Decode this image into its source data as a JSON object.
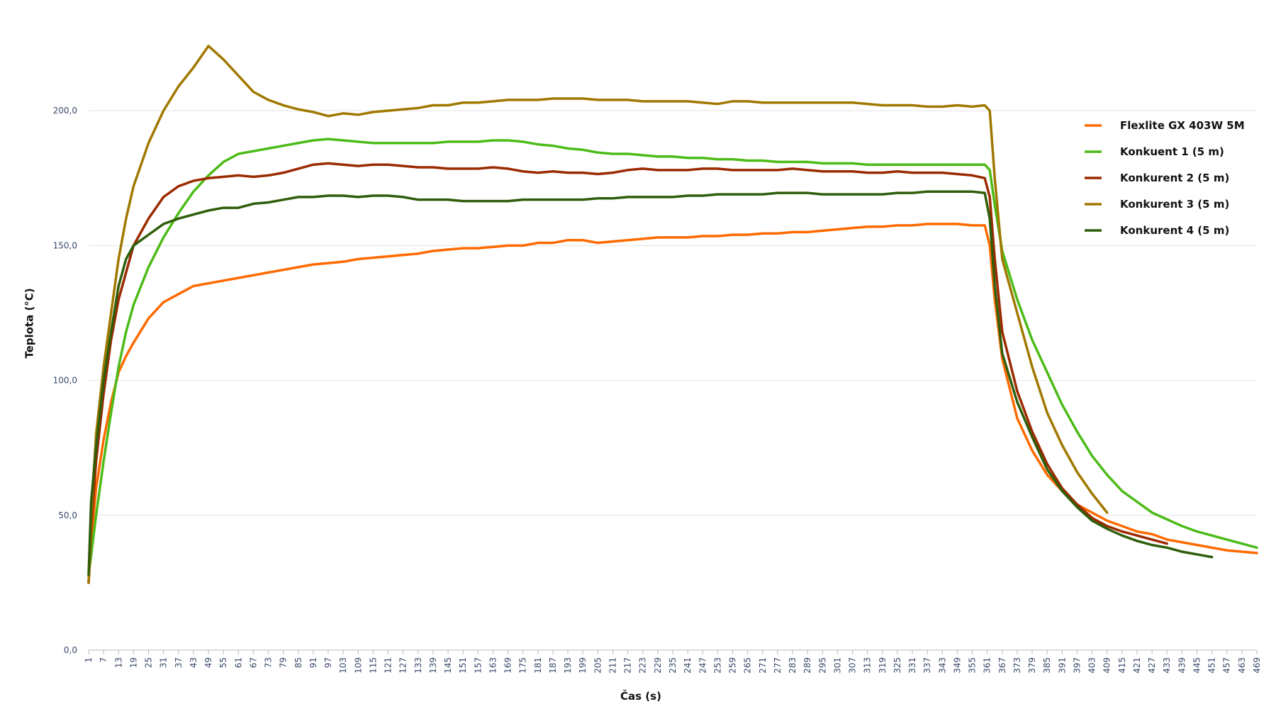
{
  "chart_data": {
    "type": "line",
    "x_label": "Čas (s)",
    "y_label": "Teplota (°C)",
    "x": [
      1,
      2,
      4,
      7,
      10,
      13,
      16,
      19,
      25,
      31,
      37,
      43,
      49,
      55,
      61,
      67,
      73,
      79,
      85,
      91,
      97,
      103,
      109,
      115,
      121,
      127,
      133,
      139,
      145,
      151,
      157,
      163,
      169,
      175,
      181,
      187,
      193,
      199,
      205,
      211,
      217,
      223,
      229,
      235,
      241,
      247,
      253,
      259,
      265,
      271,
      277,
      283,
      289,
      295,
      301,
      307,
      313,
      319,
      325,
      331,
      337,
      343,
      349,
      355,
      360,
      362,
      364,
      367,
      373,
      379,
      385,
      391,
      397,
      403,
      409,
      415,
      421,
      427,
      433,
      439,
      445,
      451,
      457,
      463,
      469
    ],
    "xlim": [
      1,
      469
    ],
    "xticks": [
      1,
      7,
      13,
      19,
      25,
      31,
      37,
      43,
      49,
      55,
      61,
      67,
      73,
      79,
      85,
      91,
      97,
      103,
      109,
      115,
      121,
      127,
      133,
      139,
      145,
      151,
      157,
      163,
      169,
      175,
      181,
      187,
      193,
      199,
      205,
      211,
      217,
      223,
      229,
      235,
      241,
      247,
      253,
      259,
      265,
      271,
      277,
      283,
      289,
      295,
      301,
      307,
      313,
      319,
      325,
      331,
      337,
      343,
      349,
      355,
      361,
      367,
      373,
      379,
      385,
      391,
      397,
      403,
      409,
      415,
      421,
      427,
      433,
      439,
      445,
      451,
      457,
      463,
      469
    ],
    "ylim": [
      0,
      230
    ],
    "yticks": [
      {
        "value": 0,
        "label": "0,0"
      },
      {
        "value": 50,
        "label": "50,0"
      },
      {
        "value": 100,
        "label": "100,0"
      },
      {
        "value": 150,
        "label": "150,0"
      },
      {
        "value": 200,
        "label": "200,0"
      }
    ],
    "grid": true,
    "legend": "top-right",
    "series": [
      {
        "name": "Flexlite GX 403W 5M",
        "color": "#ff6a00",
        "values": [
          25,
          40,
          60,
          78,
          92,
          103,
          109,
          114,
          123,
          129,
          132,
          135,
          136,
          137,
          138,
          139,
          140,
          141,
          142,
          143,
          143.5,
          144,
          145,
          145.5,
          146,
          146.5,
          147,
          148,
          148.5,
          149,
          149,
          149.5,
          150,
          150,
          151,
          151,
          152,
          152,
          151,
          151.5,
          152,
          152.5,
          153,
          153,
          153,
          153.5,
          153.5,
          154,
          154,
          154.5,
          154.5,
          155,
          155,
          155.5,
          156,
          156.5,
          157,
          157,
          157.5,
          157.5,
          158,
          158,
          158,
          157.5,
          157.5,
          150,
          130,
          108,
          86,
          74,
          65,
          59,
          54,
          51,
          48,
          46,
          44,
          43,
          41,
          40,
          39,
          38,
          37,
          36.5,
          36
        ]
      },
      {
        "name": "Konkuent 1 (5 m)",
        "color": "#4cbb17",
        "values": [
          28,
          35,
          50,
          70,
          88,
          105,
          118,
          128,
          142,
          153,
          162,
          170,
          176,
          181,
          184,
          185,
          186,
          187,
          188,
          189,
          189.5,
          189,
          188.5,
          188,
          188,
          188,
          188,
          188,
          188.5,
          188.5,
          188.5,
          189,
          189,
          188.5,
          187.5,
          187,
          186,
          185.5,
          184.5,
          184,
          184,
          183.5,
          183,
          183,
          182.5,
          182.5,
          182,
          182,
          181.5,
          181.5,
          181,
          181,
          181,
          180.5,
          180.5,
          180.5,
          180,
          180,
          180,
          180,
          180,
          180,
          180,
          180,
          180,
          178,
          165,
          148,
          130,
          115,
          103,
          91,
          81,
          72,
          65,
          59,
          55,
          51,
          48.5,
          46,
          44,
          42.5,
          41,
          39.5,
          38
        ]
      },
      {
        "name": "Konkurent 2 (5 m)",
        "color": "#9b2a00",
        "values": [
          25,
          45,
          70,
          95,
          115,
          130,
          140,
          150,
          160,
          168,
          172,
          174,
          175,
          175.5,
          176,
          175.5,
          176,
          177,
          178.5,
          180,
          180.5,
          180,
          179.5,
          180,
          180,
          179.5,
          179,
          179,
          178.5,
          178.5,
          178.5,
          179,
          178.5,
          177.5,
          177,
          177.5,
          177,
          177,
          176.5,
          177,
          178,
          178.5,
          178,
          178,
          178,
          178.5,
          178.5,
          178,
          178,
          178,
          178,
          178.5,
          178,
          177.5,
          177.5,
          177.5,
          177,
          177,
          177.5,
          177,
          177,
          177,
          176.5,
          176,
          175,
          168,
          145,
          118,
          96,
          81,
          69,
          60,
          54,
          49,
          46,
          44,
          42.5,
          41,
          39.5,
          null,
          null,
          null,
          null,
          null,
          null
        ]
      },
      {
        "name": "Konkurent 3 (5 m)",
        "color": "#a07800",
        "values": [
          25,
          50,
          80,
          105,
          125,
          145,
          160,
          172,
          188,
          200,
          209,
          216,
          224,
          219,
          213,
          207,
          204,
          202,
          200.5,
          199.5,
          198,
          199,
          198.5,
          199.5,
          200,
          200.5,
          201,
          202,
          202,
          203,
          203,
          203.5,
          204,
          204,
          204,
          204.5,
          204.5,
          204.5,
          204,
          204,
          204,
          203.5,
          203.5,
          203.5,
          203.5,
          203,
          202.5,
          203.5,
          203.5,
          203,
          203,
          203,
          203,
          203,
          203,
          203,
          202.5,
          202,
          202,
          202,
          201.5,
          201.5,
          202,
          201.5,
          202,
          200,
          175,
          145,
          125,
          105,
          88,
          76,
          66,
          58,
          51,
          null,
          null,
          null,
          null,
          null,
          null,
          null,
          null,
          null,
          null
        ]
      },
      {
        "name": "Konkurent 4 (5 m)",
        "color": "#2f5e0a",
        "values": [
          28,
          55,
          75,
          100,
          118,
          135,
          145,
          150,
          154,
          158,
          160,
          161.5,
          163,
          164,
          164,
          165.5,
          166,
          167,
          168,
          168,
          168.5,
          168.5,
          168,
          168.5,
          168.5,
          168,
          167,
          167,
          167,
          166.5,
          166.5,
          166.5,
          166.5,
          167,
          167,
          167,
          167,
          167,
          167.5,
          167.5,
          168,
          168,
          168,
          168,
          168.5,
          168.5,
          169,
          169,
          169,
          169,
          169.5,
          169.5,
          169.5,
          169,
          169,
          169,
          169,
          169,
          169.5,
          169.5,
          170,
          170,
          170,
          170,
          169.5,
          160,
          135,
          110,
          92,
          79,
          67,
          59,
          53,
          48,
          45,
          42.5,
          40.5,
          39,
          38,
          36.5,
          35.5,
          34.5,
          null,
          null,
          null
        ]
      }
    ]
  }
}
